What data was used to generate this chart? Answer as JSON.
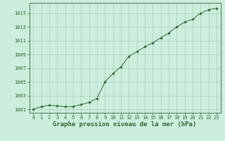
{
  "x": [
    0,
    1,
    2,
    3,
    4,
    5,
    6,
    7,
    8,
    9,
    10,
    11,
    12,
    13,
    14,
    15,
    16,
    17,
    18,
    19,
    20,
    21,
    22,
    23
  ],
  "y": [
    1001.0,
    1001.4,
    1001.6,
    1001.5,
    1001.4,
    1001.4,
    1001.7,
    1002.0,
    1002.6,
    1005.0,
    1006.2,
    1007.2,
    1008.7,
    1009.4,
    1010.1,
    1010.7,
    1011.4,
    1012.1,
    1013.0,
    1013.7,
    1014.1,
    1015.0,
    1015.5,
    1015.7
  ],
  "line_color": "#336633",
  "marker_color": "#336633",
  "bg_color": "#cceedd",
  "grid_color": "#aaccbb",
  "title": "Graphe pression niveau de la mer (hPa)",
  "ylim": [
    1000.5,
    1016.5
  ],
  "xlim": [
    -0.5,
    23.5
  ],
  "yticks": [
    1001,
    1003,
    1005,
    1007,
    1009,
    1011,
    1013,
    1015
  ],
  "xticks": [
    0,
    1,
    2,
    3,
    4,
    5,
    6,
    7,
    8,
    9,
    10,
    11,
    12,
    13,
    14,
    15,
    16,
    17,
    18,
    19,
    20,
    21,
    22,
    23
  ],
  "title_fontsize": 6.5,
  "tick_fontsize": 5.0,
  "line_color_hex": "#2d6b2d",
  "spine_color": "#336633"
}
